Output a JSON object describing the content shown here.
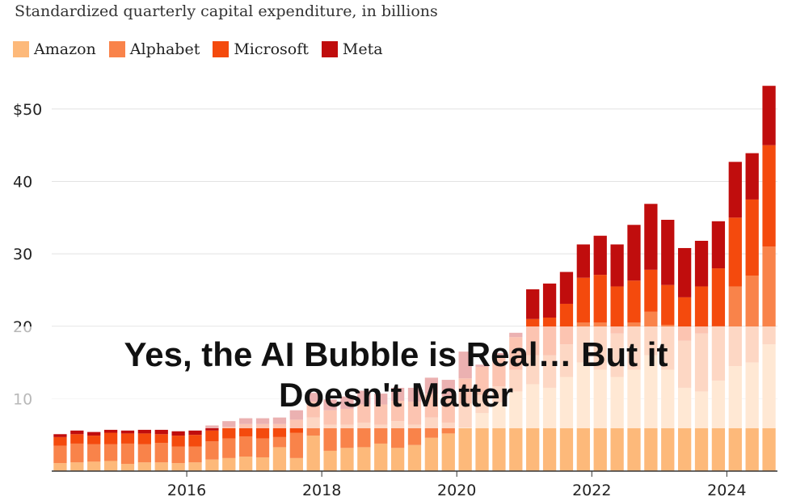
{
  "chart_data": {
    "type": "bar",
    "stacked": true,
    "title": "Standardized quarterly capital expenditure, in billions",
    "xlabel": "",
    "ylabel": "",
    "ylim": [
      0,
      53
    ],
    "y_ticks": [
      {
        "value": 10,
        "label": "10"
      },
      {
        "value": 20,
        "label": "20"
      },
      {
        "value": 30,
        "label": "30"
      },
      {
        "value": 40,
        "label": "40"
      },
      {
        "value": 50,
        "label": "$50"
      }
    ],
    "x_ticks": [
      {
        "category": "2016 Q1",
        "label": "2016"
      },
      {
        "category": "2018 Q1",
        "label": "2018"
      },
      {
        "category": "2020 Q1",
        "label": "2020"
      },
      {
        "category": "2022 Q1",
        "label": "2022"
      },
      {
        "category": "2024 Q1",
        "label": "2024"
      }
    ],
    "grid": true,
    "legend_position": "top-left",
    "categories": [
      "2014 Q1",
      "2014 Q2",
      "2014 Q3",
      "2014 Q4",
      "2015 Q1",
      "2015 Q2",
      "2015 Q3",
      "2015 Q4",
      "2016 Q1",
      "2016 Q2",
      "2016 Q3",
      "2016 Q4",
      "2017 Q1",
      "2017 Q2",
      "2017 Q3",
      "2017 Q4",
      "2018 Q1",
      "2018 Q2",
      "2018 Q3",
      "2018 Q4",
      "2019 Q1",
      "2019 Q2",
      "2019 Q3",
      "2019 Q4",
      "2020 Q1",
      "2020 Q2",
      "2020 Q3",
      "2020 Q4",
      "2021 Q1",
      "2021 Q2",
      "2021 Q3",
      "2021 Q4",
      "2022 Q1",
      "2022 Q2",
      "2022 Q3",
      "2022 Q4",
      "2023 Q1",
      "2023 Q2",
      "2023 Q3",
      "2023 Q4",
      "2024 Q1",
      "2024 Q2",
      "2024 Q3"
    ],
    "series": [
      {
        "name": "Amazon",
        "color": "#fdb97a",
        "values": [
          1.1,
          1.2,
          1.3,
          1.4,
          1.0,
          1.2,
          1.2,
          1.1,
          1.2,
          1.6,
          1.8,
          2.0,
          1.9,
          3.3,
          1.8,
          4.9,
          2.8,
          3.2,
          3.3,
          3.8,
          3.2,
          3.6,
          4.6,
          5.2,
          6.0,
          8.0,
          9.5,
          11.0,
          12.0,
          11.5,
          13.0,
          15.0,
          14.0,
          13.0,
          14.0,
          16.0,
          14.0,
          11.5,
          11.0,
          12.5,
          14.5,
          15.0,
          17.5
        ]
      },
      {
        "name": "Alphabet",
        "color": "#f9834a",
        "values": [
          2.4,
          2.6,
          2.4,
          2.3,
          2.8,
          2.5,
          2.7,
          2.3,
          2.2,
          2.5,
          2.7,
          2.8,
          2.6,
          1.4,
          3.5,
          2.5,
          3.6,
          3.2,
          3.4,
          2.6,
          3.7,
          2.8,
          2.8,
          1.5,
          3.3,
          2.5,
          2.2,
          3.0,
          4.0,
          4.5,
          4.5,
          5.5,
          6.5,
          6.0,
          6.5,
          6.0,
          6.2,
          6.5,
          8.0,
          7.5,
          11.0,
          12.0,
          13.5
        ]
      },
      {
        "name": "Microsoft",
        "color": "#f44a0d",
        "values": [
          1.2,
          1.3,
          1.2,
          1.6,
          1.4,
          1.5,
          1.2,
          1.5,
          1.6,
          1.5,
          1.6,
          1.7,
          2.0,
          1.8,
          1.8,
          2.2,
          2.0,
          2.2,
          2.5,
          2.8,
          2.8,
          3.2,
          3.3,
          3.6,
          3.5,
          3.9,
          4.3,
          4.5,
          5.0,
          5.2,
          5.6,
          6.2,
          6.6,
          6.5,
          5.8,
          5.8,
          5.5,
          6.0,
          6.5,
          8.0,
          9.5,
          10.5,
          14.0
        ]
      },
      {
        "name": "Meta",
        "color": "#c00d0d",
        "values": [
          0.4,
          0.5,
          0.5,
          0.4,
          0.4,
          0.5,
          0.6,
          0.6,
          0.6,
          0.7,
          0.8,
          0.8,
          0.8,
          0.9,
          1.3,
          1.2,
          1.5,
          1.7,
          1.9,
          1.5,
          1.8,
          1.9,
          2.2,
          2.3,
          3.7,
          0.3,
          0.3,
          0.6,
          4.1,
          4.7,
          4.4,
          4.6,
          5.4,
          5.8,
          7.7,
          9.1,
          9.0,
          6.8,
          6.3,
          6.5,
          7.7,
          6.4,
          8.2
        ]
      }
    ]
  },
  "headline": {
    "line1": "Yes, the AI Bubble is Real… But it",
    "line2": "Doesn't Matter"
  }
}
